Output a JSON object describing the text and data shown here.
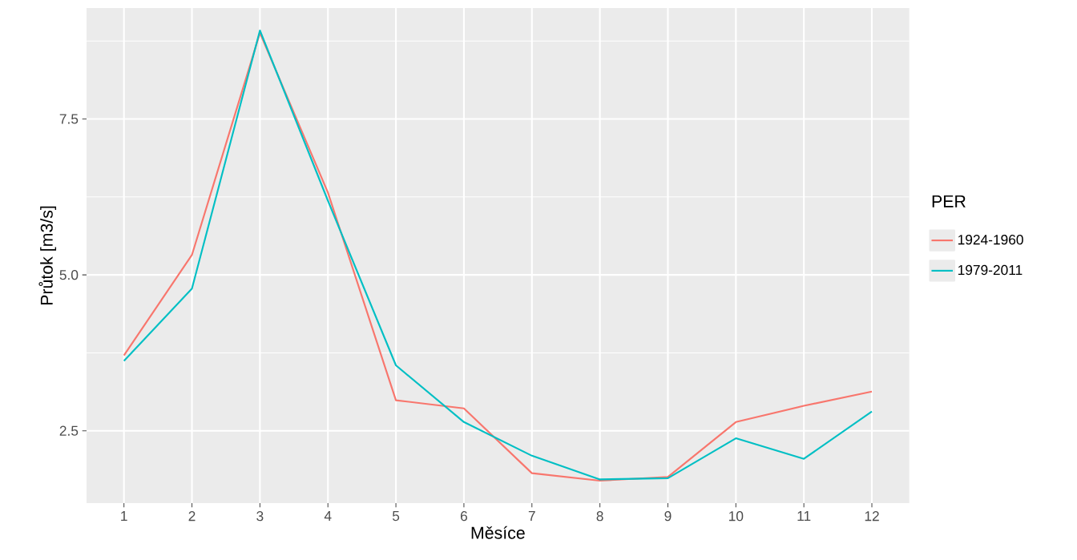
{
  "chart_data": {
    "type": "line",
    "xlabel": "Měsíce",
    "ylabel": "Průtok [m3/s]",
    "legend_title": "PER",
    "legend": "right",
    "grid": true,
    "x": [
      1,
      2,
      3,
      4,
      5,
      6,
      7,
      8,
      9,
      10,
      11,
      12
    ],
    "series": [
      {
        "name": "1924-1960",
        "color": "#f8766d",
        "values": [
          3.71,
          5.32,
          8.88,
          6.32,
          2.99,
          2.86,
          1.82,
          1.7,
          1.76,
          2.64,
          2.9,
          3.13
        ]
      },
      {
        "name": "1979-2011",
        "color": "#00bfc4",
        "values": [
          3.62,
          4.78,
          8.92,
          6.19,
          3.55,
          2.64,
          2.1,
          1.72,
          1.74,
          2.38,
          2.05,
          2.81
        ]
      }
    ],
    "xlim": [
      0.45,
      12.55
    ],
    "ylim": [
      1.34,
      9.28
    ],
    "xticks": [
      1,
      2,
      3,
      4,
      5,
      6,
      7,
      8,
      9,
      10,
      11,
      12
    ],
    "yticks": [
      {
        "value": 2.5,
        "label": "2.5"
      },
      {
        "value": 5,
        "label": "5.0"
      },
      {
        "value": 7.5,
        "label": "7.5"
      }
    ]
  }
}
